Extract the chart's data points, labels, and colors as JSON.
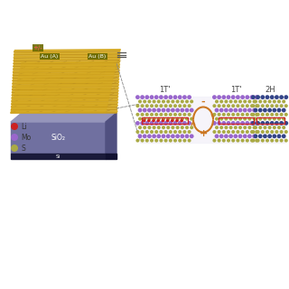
{
  "bg_color": "none",
  "atom_colors": {
    "Li": "#cc2222",
    "Mo_1T": "#9966cc",
    "S": "#aaaa44",
    "Mo_2H": "#334488",
    "S_2H": "#aaaa44"
  },
  "au_color": "#d4a820",
  "au_dark": "#b08010",
  "label_bg": "#6b6b00",
  "substrate_top": "#9090bb",
  "substrate_front": "#7070a0",
  "substrate_side": "#5050808",
  "substrate_si": "#1a1a3a",
  "arrow_color": "#cc7722",
  "highlight_rect": "#cc2222",
  "phase_labels": [
    "1T'",
    "1T'",
    "2H"
  ],
  "sio2_label": "SiO₂",
  "si_label": "Si",
  "au_labels": [
    "Au (A)",
    "Au (B)"
  ],
  "pm_label": "+/-",
  "legend_items": [
    "Li",
    "Mo",
    "S"
  ],
  "legend_colors": [
    "#cc2222",
    "#9966cc",
    "#aaaa44"
  ]
}
